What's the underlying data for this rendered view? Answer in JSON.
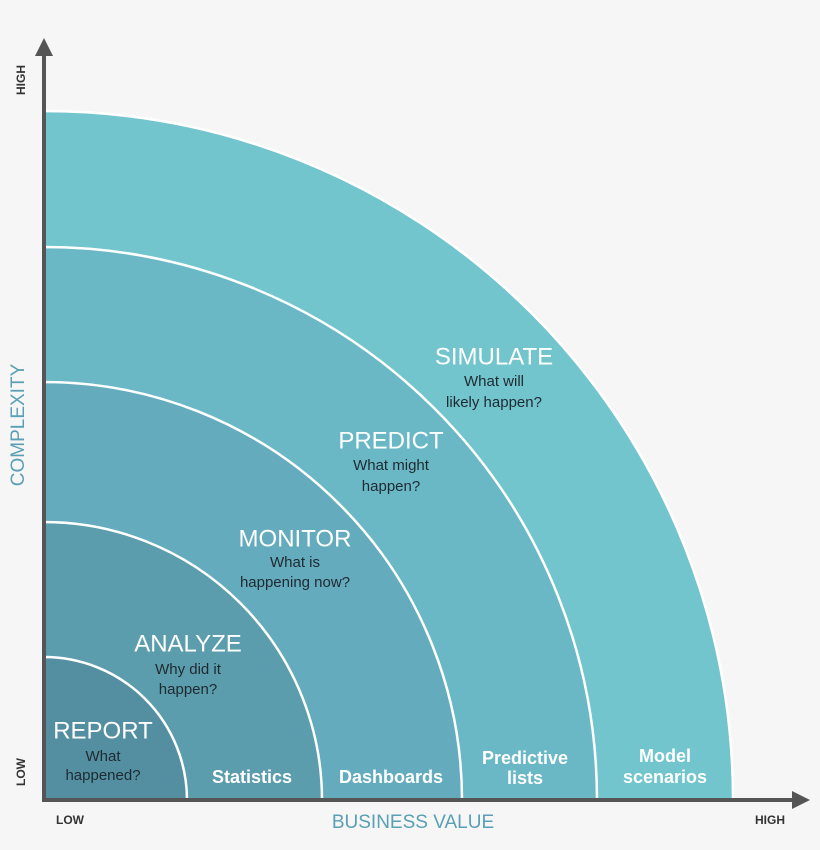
{
  "axes": {
    "y_label": "COMPLEXITY",
    "y_high": "HIGH",
    "y_low": "LOW",
    "x_label": "BUSINESS VALUE",
    "x_low": "LOW",
    "x_high": "HIGH"
  },
  "rings": [
    {
      "title": "REPORT",
      "question": [
        "What",
        "happened?"
      ]
    },
    {
      "title": "ANALYZE",
      "question": [
        "Why did it",
        "happen?"
      ],
      "base_label": [
        "Statistics"
      ]
    },
    {
      "title": "MONITOR",
      "question": [
        "What is",
        "happening now?"
      ],
      "base_label": [
        "Dashboards"
      ]
    },
    {
      "title": "PREDICT",
      "question": [
        "What might",
        "happen?"
      ],
      "base_label": [
        "Predictive",
        "lists"
      ]
    },
    {
      "title": "SIMULATE",
      "question": [
        "What will",
        "likely happen?"
      ],
      "base_label": [
        "Model",
        "scenarios"
      ]
    }
  ]
}
